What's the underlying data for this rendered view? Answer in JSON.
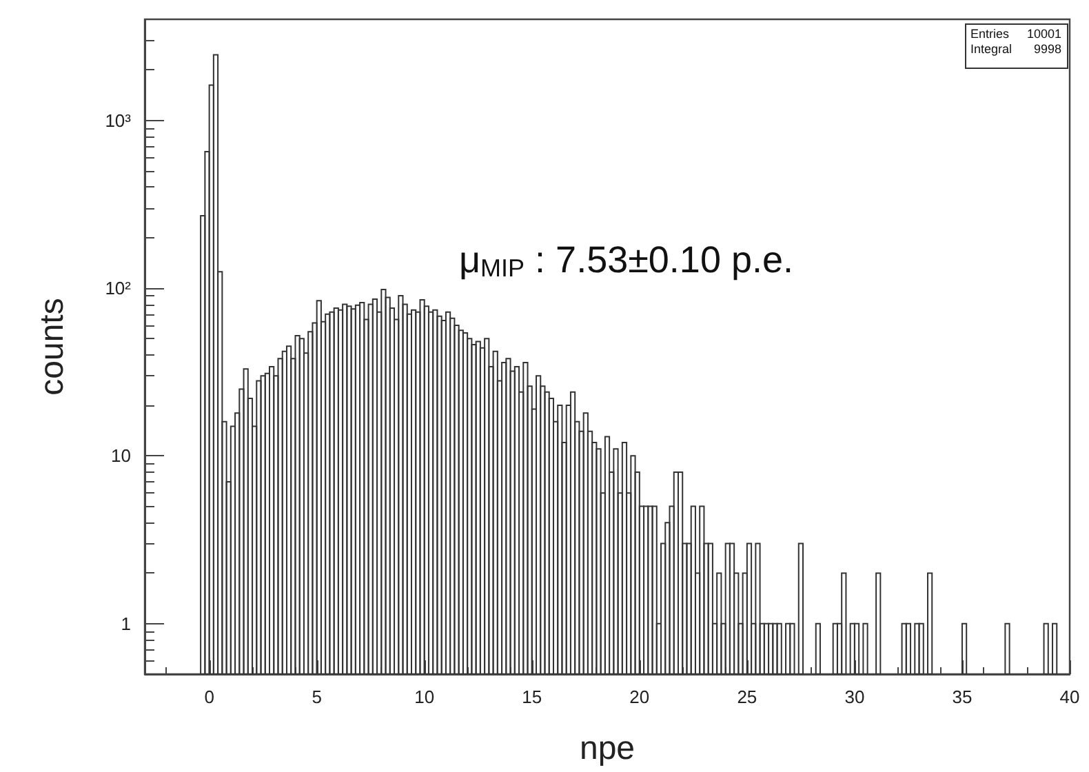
{
  "chart_data": {
    "type": "histogram",
    "xlabel": "npe",
    "ylabel": "counts",
    "color": "#333333",
    "annotations": [
      "μ$_{MIP}$ : 7.53±0.10 p.e.",
      "Entries 10001",
      "Integral 9998"
    ],
    "xlim": [
      -3,
      40
    ],
    "xticks": [
      0,
      5,
      10,
      15,
      20,
      25,
      30,
      35,
      40
    ],
    "ylim": [
      0.5,
      4000
    ],
    "yticks": [
      1,
      10,
      {
        "value": 100,
        "label": "10²"
      },
      {
        "value": 1000,
        "label": "10³"
      }
    ],
    "log": true,
    "grid": false,
    "bins": [
      -0.4,
      -0.2,
      0,
      0.2,
      0.4,
      0.6,
      0.8,
      1,
      1.2,
      1.4,
      1.6,
      1.8,
      2,
      2.2,
      2.4,
      2.6,
      2.8,
      3,
      3.2,
      3.4,
      3.6,
      3.8,
      4,
      4.2,
      4.4,
      4.6,
      4.8,
      5,
      5.2,
      5.4,
      5.6,
      5.8,
      6,
      6.2,
      6.4,
      6.6,
      6.8,
      7,
      7.2,
      7.4,
      7.6,
      7.8,
      8,
      8.2,
      8.4,
      8.6,
      8.8,
      9,
      9.2,
      9.4,
      9.6,
      9.8,
      10,
      10.2,
      10.4,
      10.6,
      10.8,
      11,
      11.2,
      11.4,
      11.6,
      11.8,
      12,
      12.2,
      12.4,
      12.6,
      12.8,
      13,
      13.2,
      13.4,
      13.6,
      13.8,
      14,
      14.2,
      14.4,
      14.6,
      14.8,
      15,
      15.2,
      15.4,
      15.6,
      15.8,
      16,
      16.2,
      16.4,
      16.6,
      16.8,
      17,
      17.2,
      17.4,
      17.6,
      17.8,
      18,
      18.2,
      18.4,
      18.6,
      18.8,
      19,
      19.2,
      19.4,
      19.6,
      19.8,
      20,
      20.2,
      20.4,
      20.6,
      20.8,
      21,
      21.2,
      21.4,
      21.6,
      21.8,
      22,
      22.2,
      22.4,
      22.6,
      22.8,
      23,
      23.2,
      23.4,
      23.6,
      23.8,
      24,
      24.2,
      24.4,
      24.6,
      24.8,
      25,
      25.2,
      25.4,
      25.6,
      25.8,
      26,
      26.2,
      26.4,
      26.6,
      26.8,
      27,
      27.2,
      27.4,
      27.6,
      27.8,
      28,
      28.2,
      28.4,
      28.6,
      28.8,
      29,
      29.2,
      29.4,
      29.6,
      29.8,
      30,
      30.2,
      30.4,
      30.6,
      30.8,
      31,
      31.2,
      31.4,
      31.6,
      31.8,
      32,
      32.2,
      32.4,
      32.6,
      32.8,
      33,
      33.2,
      33.4,
      33.6,
      33.8,
      34,
      34.2,
      34.4,
      34.6,
      34.8,
      35,
      35.2,
      35.4,
      35.6,
      35.8,
      36,
      36.2,
      36.4,
      36.6,
      36.8,
      37,
      37.2,
      37.4,
      37.6,
      37.8,
      38,
      38.2,
      38.4,
      38.6,
      38.8,
      39,
      39.2,
      39.4,
      39.6,
      39.8,
      40
    ],
    "values": [
      270,
      650,
      1620,
      2460,
      125,
      16,
      7,
      15,
      18,
      25,
      33,
      22,
      15,
      28,
      30,
      31,
      34,
      30,
      38,
      42,
      45,
      38,
      52,
      50,
      41,
      55,
      62,
      84,
      63,
      70,
      72,
      76,
      74,
      80,
      78,
      75,
      79,
      82,
      65,
      80,
      86,
      72,
      98,
      88,
      76,
      65,
      90,
      80,
      70,
      74,
      72,
      85,
      78,
      72,
      74,
      68,
      64,
      72,
      66,
      60,
      56,
      54,
      50,
      46,
      48,
      44,
      50,
      34,
      42,
      28,
      36,
      38,
      32,
      34,
      24,
      36,
      26,
      19,
      30,
      26,
      24,
      22,
      16,
      20,
      12,
      20,
      24,
      16,
      14,
      18,
      14,
      12,
      11,
      6,
      13,
      8,
      11,
      6,
      12,
      6,
      10,
      8,
      5,
      5,
      5,
      5,
      1,
      3,
      4,
      5,
      8,
      8,
      3,
      3,
      5,
      2,
      5,
      3,
      3,
      1,
      2,
      1,
      3,
      3,
      2,
      1,
      2,
      3,
      1,
      3,
      1,
      1,
      1,
      1,
      1,
      null,
      1,
      1,
      null,
      3,
      null,
      null,
      null,
      1,
      null,
      null,
      null,
      1,
      1,
      2,
      null,
      1,
      1,
      null,
      1,
      null,
      null,
      2,
      null,
      null,
      null,
      null,
      null,
      1,
      1,
      null,
      1,
      1,
      null,
      2,
      null,
      null,
      null,
      null,
      null,
      null,
      null,
      1,
      null,
      null,
      null,
      null,
      null,
      null,
      null,
      null,
      null,
      1,
      null,
      null,
      null,
      null,
      null,
      null,
      null,
      null,
      1,
      null,
      1,
      null,
      null,
      null
    ]
  }
}
